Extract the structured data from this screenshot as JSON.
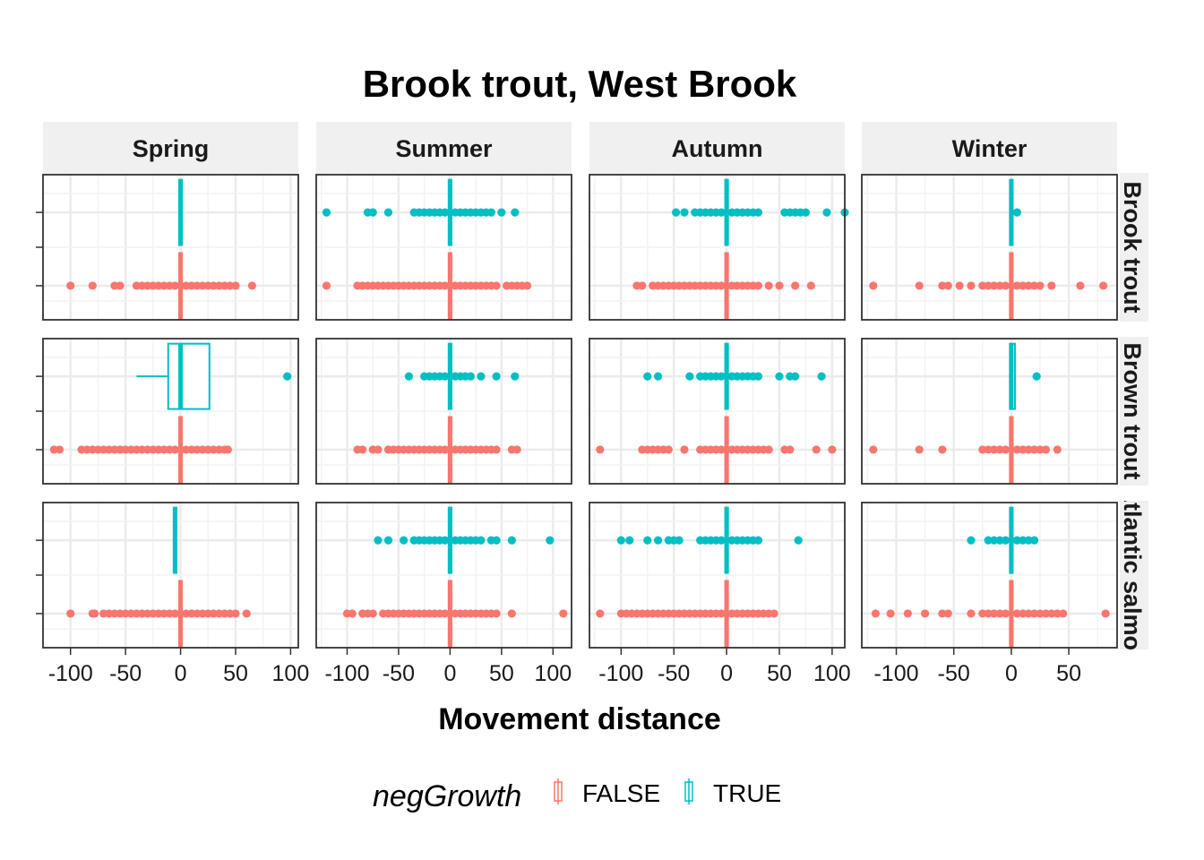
{
  "chart_data": {
    "type": "boxplot",
    "title": "Brook trout, West Brook",
    "xlabel": "Movement distance",
    "ylabel": "",
    "facet_cols": [
      "Spring",
      "Summer",
      "Autumn",
      "Winter"
    ],
    "facet_rows": [
      "Brook trout",
      "Brown trout",
      "Atlantic salmon"
    ],
    "x_ticks": [
      [
        -100,
        -50,
        0,
        50,
        100
      ],
      [
        -100,
        -50,
        0,
        50,
        100
      ],
      [
        -100,
        -50,
        0,
        50,
        100
      ],
      [
        -100,
        -50,
        0,
        50
      ]
    ],
    "x_limits": [
      [
        -125,
        107
      ],
      [
        -130,
        118
      ],
      [
        -130,
        112
      ],
      [
        -130,
        92
      ]
    ],
    "legend": {
      "title": "negGrowth",
      "position": "bottom",
      "entries": [
        {
          "label": "FALSE",
          "color": "#F8766D"
        },
        {
          "label": "TRUE",
          "color": "#00BFC4"
        }
      ]
    },
    "panels": [
      {
        "row": 0,
        "col": 0,
        "series": [
          {
            "group": "FALSE",
            "box": [
              -2,
              0,
              0,
              0,
              2
            ],
            "outliers": [
              -100,
              -80,
              -60,
              -55,
              -40,
              -35,
              -30,
              -25,
              -20,
              -15,
              -10,
              -5,
              5,
              10,
              15,
              20,
              25,
              30,
              35,
              40,
              45,
              50,
              65
            ]
          },
          {
            "group": "TRUE",
            "box": [
              0,
              0,
              0,
              0,
              0
            ],
            "outliers": []
          }
        ]
      },
      {
        "row": 0,
        "col": 1,
        "series": [
          {
            "group": "FALSE",
            "box": [
              -2,
              0,
              0,
              0,
              2
            ],
            "outliers": [
              -120,
              -90,
              -85,
              -80,
              -75,
              -70,
              -65,
              -60,
              -55,
              -50,
              -45,
              -40,
              -35,
              -30,
              -25,
              -20,
              -15,
              -10,
              -5,
              5,
              10,
              15,
              20,
              25,
              30,
              35,
              40,
              45,
              55,
              60,
              65,
              70,
              75
            ]
          },
          {
            "group": "TRUE",
            "box": [
              0,
              0,
              0,
              0,
              0
            ],
            "outliers": [
              -120,
              -80,
              -75,
              -60,
              -35,
              -30,
              -25,
              -20,
              -15,
              -10,
              -5,
              5,
              10,
              15,
              20,
              25,
              30,
              35,
              40,
              50,
              63
            ]
          }
        ]
      },
      {
        "row": 0,
        "col": 2,
        "series": [
          {
            "group": "FALSE",
            "box": [
              -2,
              0,
              0,
              0,
              2
            ],
            "outliers": [
              -85,
              -80,
              -70,
              -65,
              -60,
              -55,
              -50,
              -45,
              -40,
              -35,
              -30,
              -25,
              -20,
              -15,
              -10,
              -5,
              5,
              10,
              15,
              20,
              25,
              30,
              40,
              50,
              65,
              80
            ]
          },
          {
            "group": "TRUE",
            "box": [
              0,
              0,
              0,
              0,
              0
            ],
            "outliers": [
              -48,
              -40,
              -30,
              -25,
              -20,
              -15,
              -10,
              -5,
              5,
              10,
              15,
              20,
              25,
              30,
              55,
              60,
              65,
              70,
              75,
              95,
              112
            ]
          }
        ]
      },
      {
        "row": 0,
        "col": 3,
        "series": [
          {
            "group": "FALSE",
            "box": [
              -2,
              0,
              0,
              0,
              2
            ],
            "outliers": [
              -120,
              -80,
              -60,
              -55,
              -45,
              -35,
              -25,
              -20,
              -15,
              -10,
              -5,
              5,
              10,
              15,
              20,
              25,
              35,
              60,
              80
            ]
          },
          {
            "group": "TRUE",
            "box": [
              0,
              0,
              0,
              0,
              0
            ],
            "outliers": [
              5
            ]
          }
        ]
      },
      {
        "row": 1,
        "col": 0,
        "series": [
          {
            "group": "FALSE",
            "box": [
              -2,
              0,
              0,
              0,
              2
            ],
            "outliers": [
              -115,
              -110,
              -90,
              -85,
              -80,
              -75,
              -70,
              -65,
              -60,
              -55,
              -50,
              -45,
              -40,
              -35,
              -30,
              -25,
              -20,
              -15,
              -10,
              -5,
              5,
              10,
              15,
              20,
              25,
              30,
              35,
              40,
              43
            ]
          },
          {
            "group": "TRUE",
            "box": [
              -40,
              -10,
              0,
              25,
              25
            ],
            "outliers": [
              97
            ]
          }
        ]
      },
      {
        "row": 1,
        "col": 1,
        "series": [
          {
            "group": "FALSE",
            "box": [
              -2,
              0,
              0,
              0,
              2
            ],
            "outliers": [
              -90,
              -85,
              -75,
              -70,
              -60,
              -55,
              -50,
              -45,
              -40,
              -35,
              -30,
              -25,
              -20,
              -15,
              -10,
              -5,
              5,
              10,
              15,
              20,
              25,
              30,
              35,
              40,
              45,
              60,
              65
            ]
          },
          {
            "group": "TRUE",
            "box": [
              0,
              0,
              0,
              0,
              0
            ],
            "outliers": [
              -40,
              -25,
              -20,
              -15,
              -10,
              -5,
              5,
              10,
              15,
              20,
              30,
              45,
              63
            ]
          }
        ]
      },
      {
        "row": 1,
        "col": 2,
        "series": [
          {
            "group": "FALSE",
            "box": [
              -2,
              0,
              0,
              0,
              2
            ],
            "outliers": [
              -120,
              -80,
              -75,
              -70,
              -65,
              -60,
              -55,
              -40,
              -25,
              -20,
              -15,
              -10,
              -5,
              5,
              10,
              15,
              20,
              25,
              30,
              35,
              40,
              55,
              60,
              85,
              100
            ]
          },
          {
            "group": "TRUE",
            "box": [
              -2,
              0,
              0,
              0,
              2
            ],
            "outliers": [
              -75,
              -65,
              -35,
              -25,
              -20,
              -15,
              -10,
              -5,
              5,
              10,
              15,
              20,
              25,
              30,
              50,
              60,
              65,
              90
            ]
          }
        ]
      },
      {
        "row": 1,
        "col": 3,
        "series": [
          {
            "group": "FALSE",
            "box": [
              -2,
              0,
              0,
              0,
              2
            ],
            "outliers": [
              -120,
              -80,
              -60,
              -25,
              -20,
              -15,
              -10,
              -5,
              5,
              10,
              15,
              20,
              25,
              30,
              40
            ]
          },
          {
            "group": "TRUE",
            "box": [
              -2,
              0,
              0,
              2,
              2
            ],
            "outliers": [
              22
            ]
          }
        ]
      },
      {
        "row": 2,
        "col": 0,
        "series": [
          {
            "group": "FALSE",
            "box": [
              -2,
              0,
              0,
              0,
              2
            ],
            "outliers": [
              -100,
              -80,
              -78,
              -70,
              -65,
              -60,
              -55,
              -50,
              -45,
              -40,
              -35,
              -30,
              -25,
              -20,
              -15,
              -10,
              -5,
              5,
              10,
              15,
              20,
              25,
              30,
              35,
              40,
              45,
              50,
              60
            ]
          },
          {
            "group": "TRUE",
            "box": [
              -5,
              -5,
              -5,
              -5,
              -5
            ],
            "outliers": []
          }
        ]
      },
      {
        "row": 2,
        "col": 1,
        "series": [
          {
            "group": "FALSE",
            "box": [
              -2,
              0,
              0,
              0,
              2
            ],
            "outliers": [
              -100,
              -95,
              -85,
              -80,
              -75,
              -65,
              -60,
              -55,
              -50,
              -45,
              -40,
              -35,
              -30,
              -25,
              -20,
              -15,
              -10,
              -5,
              5,
              10,
              15,
              20,
              25,
              30,
              35,
              40,
              45,
              60,
              110
            ]
          },
          {
            "group": "TRUE",
            "box": [
              0,
              0,
              0,
              0,
              0
            ],
            "outliers": [
              -70,
              -60,
              -45,
              -35,
              -30,
              -25,
              -20,
              -15,
              -10,
              -5,
              5,
              10,
              15,
              20,
              25,
              30,
              40,
              45,
              60,
              97
            ]
          }
        ]
      },
      {
        "row": 2,
        "col": 2,
        "series": [
          {
            "group": "FALSE",
            "box": [
              -2,
              0,
              0,
              0,
              2
            ],
            "outliers": [
              -120,
              -100,
              -95,
              -90,
              -85,
              -80,
              -75,
              -70,
              -65,
              -60,
              -55,
              -50,
              -45,
              -40,
              -35,
              -30,
              -25,
              -20,
              -15,
              -10,
              -5,
              5,
              10,
              15,
              20,
              25,
              30,
              35,
              40,
              45
            ]
          },
          {
            "group": "TRUE",
            "box": [
              0,
              0,
              0,
              0,
              0
            ],
            "outliers": [
              -100,
              -92,
              -75,
              -65,
              -55,
              -50,
              -45,
              -25,
              -20,
              -15,
              -10,
              -5,
              5,
              10,
              15,
              20,
              25,
              30,
              68
            ]
          }
        ]
      },
      {
        "row": 2,
        "col": 3,
        "series": [
          {
            "group": "FALSE",
            "box": [
              -2,
              0,
              0,
              0,
              2
            ],
            "outliers": [
              -118,
              -105,
              -90,
              -75,
              -60,
              -55,
              -35,
              -25,
              -20,
              -15,
              -10,
              -5,
              5,
              10,
              15,
              20,
              25,
              30,
              35,
              40,
              45,
              82
            ]
          },
          {
            "group": "TRUE",
            "box": [
              0,
              0,
              0,
              0,
              0
            ],
            "outliers": [
              -35,
              -20,
              -15,
              -10,
              -5,
              5,
              10,
              15,
              20
            ]
          }
        ]
      }
    ]
  }
}
